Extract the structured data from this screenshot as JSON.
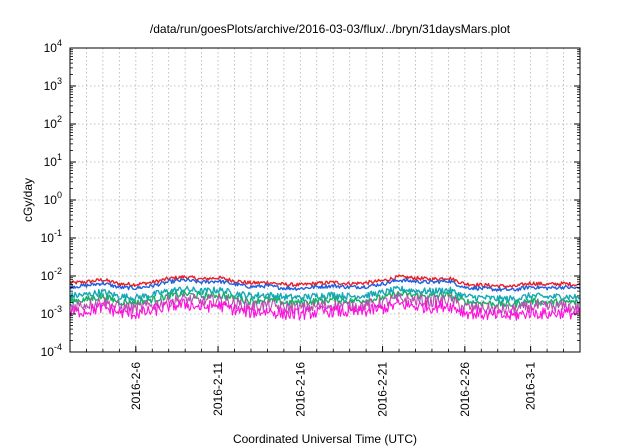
{
  "chart_data": {
    "type": "line",
    "title": "/data/run/goesPlots/archive/2016-03-03/flux/../bryn/31daysMars.plot",
    "xlabel": "Coordinated Universal Time (UTC)",
    "ylabel": "cGy/day",
    "yscale": "log",
    "ylim": [
      0.0001,
      10000
    ],
    "y_ticks": [
      {
        "base": "10",
        "exp": "4"
      },
      {
        "base": "10",
        "exp": "3"
      },
      {
        "base": "10",
        "exp": "2"
      },
      {
        "base": "10",
        "exp": "1"
      },
      {
        "base": "10",
        "exp": "0"
      },
      {
        "base": "10",
        "exp": "-1"
      },
      {
        "base": "10",
        "exp": "-2"
      },
      {
        "base": "10",
        "exp": "-3"
      },
      {
        "base": "10",
        "exp": "-4"
      }
    ],
    "xlim": [
      "2016-02-02",
      "2016-03-04"
    ],
    "x_ticks": [
      "2016-2-6",
      "2016-2-11",
      "2016-2-16",
      "2016-2-21",
      "2016-2-26",
      "2016-3-1"
    ],
    "x_tick_dates": [
      "2016-02-06",
      "2016-02-11",
      "2016-02-16",
      "2016-02-21",
      "2016-02-26",
      "2016-03-01"
    ],
    "grid": true,
    "x_dates": [
      "2016-02-02",
      "2016-02-03",
      "2016-02-04",
      "2016-02-05",
      "2016-02-06",
      "2016-02-07",
      "2016-02-08",
      "2016-02-09",
      "2016-02-10",
      "2016-02-11",
      "2016-02-12",
      "2016-02-13",
      "2016-02-14",
      "2016-02-15",
      "2016-02-16",
      "2016-02-17",
      "2016-02-18",
      "2016-02-19",
      "2016-02-20",
      "2016-02-21",
      "2016-02-22",
      "2016-02-23",
      "2016-02-24",
      "2016-02-25",
      "2016-02-26",
      "2016-02-27",
      "2016-02-28",
      "2016-02-29",
      "2016-03-01",
      "2016-03-02",
      "2016-03-03",
      "2016-03-04"
    ],
    "series": [
      {
        "color": "#e8202a",
        "values": [
          0.0065,
          0.007,
          0.008,
          0.0062,
          0.006,
          0.0068,
          0.0085,
          0.0095,
          0.0082,
          0.009,
          0.0075,
          0.0065,
          0.0068,
          0.006,
          0.0058,
          0.0064,
          0.0068,
          0.0063,
          0.0066,
          0.0075,
          0.0095,
          0.0088,
          0.0082,
          0.009,
          0.0062,
          0.0058,
          0.0055,
          0.0053,
          0.0065,
          0.006,
          0.0063,
          0.0058
        ]
      },
      {
        "color": "#1f5fe0",
        "values": [
          0.0052,
          0.0056,
          0.0065,
          0.005,
          0.0048,
          0.0055,
          0.007,
          0.0078,
          0.0068,
          0.0074,
          0.0061,
          0.0052,
          0.0055,
          0.0048,
          0.0047,
          0.0052,
          0.0055,
          0.0051,
          0.0053,
          0.0062,
          0.0078,
          0.0072,
          0.0068,
          0.0075,
          0.005,
          0.0047,
          0.0044,
          0.0043,
          0.0052,
          0.0048,
          0.0051,
          0.0047
        ]
      },
      {
        "color": "#14a8b8",
        "values": [
          0.003,
          0.0032,
          0.0038,
          0.0029,
          0.0027,
          0.0032,
          0.004,
          0.0045,
          0.0039,
          0.0043,
          0.0035,
          0.003,
          0.0032,
          0.0028,
          0.0027,
          0.003,
          0.0032,
          0.0029,
          0.0031,
          0.0036,
          0.0045,
          0.0041,
          0.0039,
          0.0043,
          0.0029,
          0.0027,
          0.0025,
          0.0025,
          0.003,
          0.0028,
          0.0029,
          0.0027
        ]
      },
      {
        "color": "#19b06a",
        "values": [
          0.0022,
          0.0024,
          0.0029,
          0.0021,
          0.002,
          0.0024,
          0.003,
          0.0034,
          0.0029,
          0.0032,
          0.0026,
          0.0022,
          0.0024,
          0.002,
          0.002,
          0.0022,
          0.0024,
          0.0022,
          0.0023,
          0.0027,
          0.0034,
          0.0031,
          0.0029,
          0.0032,
          0.0021,
          0.002,
          0.0018,
          0.0018,
          0.0022,
          0.002,
          0.0021,
          0.002
        ]
      },
      {
        "color": "#b84fb0",
        "values": [
          0.0016,
          0.0018,
          0.0021,
          0.0015,
          0.0014,
          0.0017,
          0.0022,
          0.0025,
          0.0021,
          0.0024,
          0.0019,
          0.0016,
          0.0017,
          0.0015,
          0.0014,
          0.0016,
          0.0017,
          0.0016,
          0.0017,
          0.002,
          0.0025,
          0.0023,
          0.0021,
          0.0024,
          0.0015,
          0.0014,
          0.0013,
          0.0013,
          0.0016,
          0.0015,
          0.0016,
          0.0014
        ]
      },
      {
        "color": "#ff10e0",
        "values": [
          0.0011,
          0.0012,
          0.0015,
          0.0011,
          0.001,
          0.0012,
          0.0016,
          0.0018,
          0.0015,
          0.0017,
          0.0013,
          0.0011,
          0.0012,
          0.001,
          0.001,
          0.0011,
          0.0012,
          0.0011,
          0.0012,
          0.0014,
          0.0018,
          0.0016,
          0.0015,
          0.0017,
          0.0011,
          0.001,
          0.0009,
          0.0009,
          0.0011,
          0.001,
          0.0011,
          0.001
        ]
      }
    ]
  }
}
